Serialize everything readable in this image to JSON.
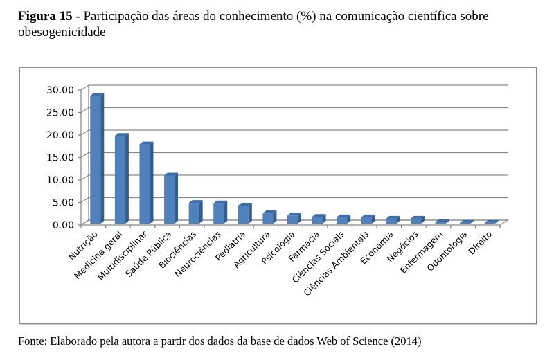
{
  "caption": {
    "label": "Figura 15 -",
    "text": " Participação das áreas do conhecimento (%) na comunicação científica sobre obesogenicidade"
  },
  "source": "Fonte: Elaborado pela autora a partir dos dados da base de dados Web of Science (2014)",
  "chart_data": {
    "type": "bar",
    "style": "3d-column",
    "title": "Participação das áreas do conhecimento (%) na comunicação científica sobre obesogenicidade",
    "xlabel": "",
    "ylabel": "",
    "ylim": [
      0,
      30
    ],
    "yticks": [
      "0.00",
      "5.00",
      "10.00",
      "15.00",
      "20.00",
      "25.00",
      "30.00"
    ],
    "grid": true,
    "legend": "none",
    "bar_color": "#4f81bd",
    "categories": [
      "Nutrição",
      "Medicina geral",
      "Multidisciplinar",
      "Saúde Pública",
      "Biociências",
      "Neurociências",
      "Pediatria",
      "Agricultura",
      "Psicologia",
      "Farmácia",
      "Ciências Sociais",
      "Ciências Ambientais",
      "Economia",
      "Negócios",
      "Enfermagem",
      "Odontologia",
      "Direito"
    ],
    "values": [
      28.4,
      19.5,
      17.6,
      10.7,
      4.6,
      4.5,
      4.0,
      2.3,
      1.8,
      1.5,
      1.4,
      1.4,
      1.1,
      1.1,
      0.3,
      0.2,
      0.2
    ]
  }
}
